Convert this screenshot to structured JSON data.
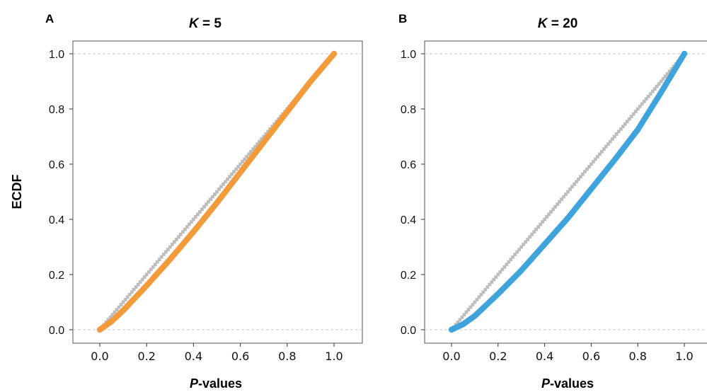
{
  "colors": {
    "reference": "#bdbdbd",
    "panelA": "#f39a3a",
    "panelB": "#3fa3dc",
    "dashed": "#c8c8c8",
    "frame": "#555555"
  },
  "chart_data": [
    {
      "type": "scatter",
      "panel_letter": "A",
      "title_var": "K",
      "title_rest": " = 5",
      "ylabel": "ECDF",
      "xlabel_var": "P",
      "xlabel_rest": "-values",
      "xlim": [
        0,
        1
      ],
      "ylim": [
        0,
        1
      ],
      "x_ticks": [
        "0.0",
        "0.2",
        "0.4",
        "0.6",
        "0.8",
        "1.0"
      ],
      "y_ticks": [
        "0.0",
        "0.2",
        "0.4",
        "0.6",
        "0.8",
        "1.0"
      ],
      "dashed_hlines": [
        0,
        1
      ],
      "series": [
        {
          "role": "reference",
          "color": "#bdbdbd",
          "x": [
            0.0,
            0.1,
            0.2,
            0.3,
            0.4,
            0.5,
            0.6,
            0.7,
            0.8,
            0.9,
            1.0
          ],
          "y": [
            0.0,
            0.1,
            0.2,
            0.3,
            0.4,
            0.5,
            0.6,
            0.7,
            0.8,
            0.9,
            1.0
          ]
        },
        {
          "role": "ecdf",
          "color": "#f39a3a",
          "x": [
            0.0,
            0.05,
            0.1,
            0.2,
            0.3,
            0.4,
            0.5,
            0.6,
            0.7,
            0.8,
            0.9,
            1.0
          ],
          "y": [
            0.0,
            0.03,
            0.07,
            0.16,
            0.255,
            0.355,
            0.46,
            0.57,
            0.68,
            0.79,
            0.9,
            1.0
          ]
        }
      ]
    },
    {
      "type": "scatter",
      "panel_letter": "B",
      "title_var": "K",
      "title_rest": " = 20",
      "ylabel": "",
      "xlabel_var": "P",
      "xlabel_rest": "-values",
      "xlim": [
        0,
        1
      ],
      "ylim": [
        0,
        1
      ],
      "x_ticks": [
        "0.0",
        "0.2",
        "0.4",
        "0.6",
        "0.8",
        "1.0"
      ],
      "y_ticks": [
        "0.0",
        "0.2",
        "0.4",
        "0.6",
        "0.8",
        "1.0"
      ],
      "dashed_hlines": [
        0,
        1
      ],
      "series": [
        {
          "role": "reference",
          "color": "#bdbdbd",
          "x": [
            0.0,
            0.1,
            0.2,
            0.3,
            0.4,
            0.5,
            0.6,
            0.7,
            0.8,
            0.9,
            1.0
          ],
          "y": [
            0.0,
            0.1,
            0.2,
            0.3,
            0.4,
            0.5,
            0.6,
            0.7,
            0.8,
            0.9,
            1.0
          ]
        },
        {
          "role": "ecdf",
          "color": "#3fa3dc",
          "x": [
            0.0,
            0.05,
            0.1,
            0.2,
            0.3,
            0.4,
            0.5,
            0.6,
            0.7,
            0.8,
            0.9,
            1.0
          ],
          "y": [
            0.0,
            0.02,
            0.05,
            0.13,
            0.215,
            0.31,
            0.405,
            0.51,
            0.615,
            0.725,
            0.86,
            1.0
          ]
        }
      ]
    }
  ]
}
